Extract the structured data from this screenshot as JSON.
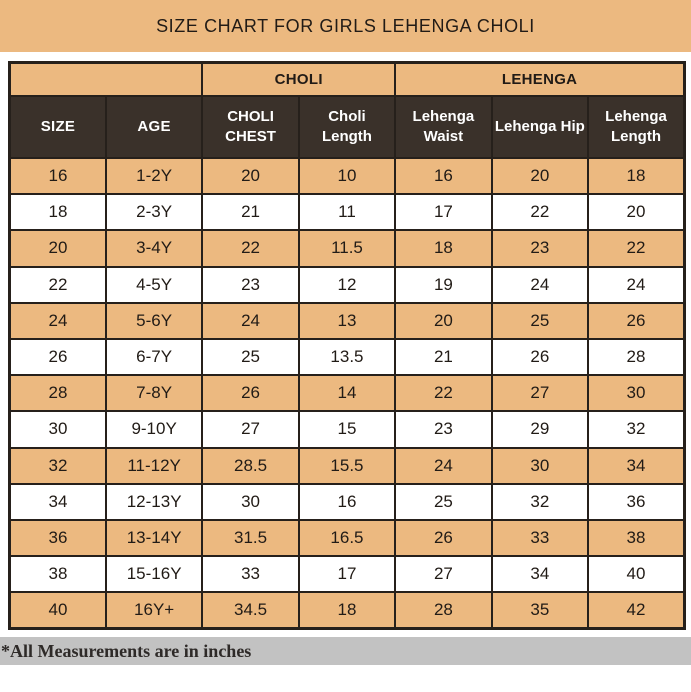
{
  "title": "SIZE CHART FOR GIRLS LEHENGA CHOLI",
  "footer_note": "*All Measurements are in inches",
  "colors": {
    "banner_tan": "#ecb980",
    "row_tan": "#ecb980",
    "row_white": "#ffffff",
    "header_brown": "#3a312a",
    "header_text": "#ffffff",
    "border": "#26201b",
    "footer_gray": "#c2c2c2",
    "text_dark": "#211b16"
  },
  "chart_data": {
    "type": "table",
    "title": "SIZE CHART FOR GIRLS LEHENGA CHOLI",
    "note": "*All Measurements are in inches",
    "units": "inches",
    "group_headers": [
      {
        "label": "",
        "span": 2
      },
      {
        "label": "CHOLI",
        "span": 2
      },
      {
        "label": "LEHENGA",
        "span": 3
      }
    ],
    "columns": [
      "SIZE",
      "AGE",
      "CHOLI CHEST",
      "Choli Length",
      "Lehenga Waist",
      "Lehenga Hip",
      "Lehenga Length"
    ],
    "rows": [
      [
        "16",
        "1-2Y",
        "20",
        "10",
        "16",
        "20",
        "18"
      ],
      [
        "18",
        "2-3Y",
        "21",
        "11",
        "17",
        "22",
        "20"
      ],
      [
        "20",
        "3-4Y",
        "22",
        "11.5",
        "18",
        "23",
        "22"
      ],
      [
        "22",
        "4-5Y",
        "23",
        "12",
        "19",
        "24",
        "24"
      ],
      [
        "24",
        "5-6Y",
        "24",
        "13",
        "20",
        "25",
        "26"
      ],
      [
        "26",
        "6-7Y",
        "25",
        "13.5",
        "21",
        "26",
        "28"
      ],
      [
        "28",
        "7-8Y",
        "26",
        "14",
        "22",
        "27",
        "30"
      ],
      [
        "30",
        "9-10Y",
        "27",
        "15",
        "23",
        "29",
        "32"
      ],
      [
        "32",
        "11-12Y",
        "28.5",
        "15.5",
        "24",
        "30",
        "34"
      ],
      [
        "34",
        "12-13Y",
        "30",
        "16",
        "25",
        "32",
        "36"
      ],
      [
        "36",
        "13-14Y",
        "31.5",
        "16.5",
        "26",
        "33",
        "38"
      ],
      [
        "38",
        "15-16Y",
        "33",
        "17",
        "27",
        "34",
        "40"
      ],
      [
        "40",
        "16Y+",
        "34.5",
        "18",
        "28",
        "35",
        "42"
      ]
    ],
    "layout_hints": {
      "striping": "odd data rows tan (#ecb980), even data rows white",
      "header_row_style": "white bold text on dark brown (#3a312a)",
      "group_row_style": "bold dark text on tan (#ecb980)"
    }
  }
}
